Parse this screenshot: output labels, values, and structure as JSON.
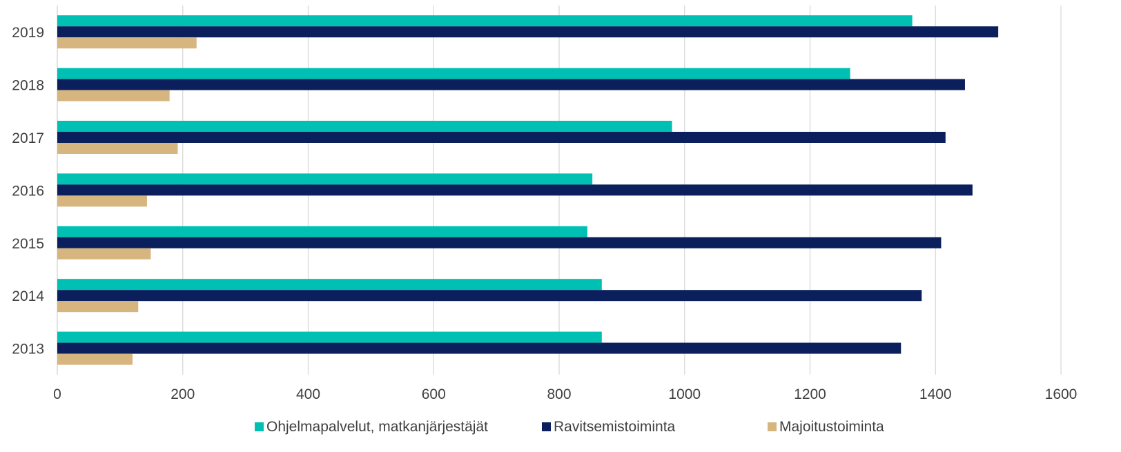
{
  "chart_data": {
    "type": "bar",
    "orientation": "horizontal",
    "categories": [
      "2019",
      "2018",
      "2017",
      "2016",
      "2015",
      "2014",
      "2013"
    ],
    "series": [
      {
        "name": "Ohjelmapalvelut, matkanjärjestäjät",
        "color": "#00bfb3",
        "values": [
          1363,
          1264,
          980,
          853,
          845,
          868,
          868
        ]
      },
      {
        "name": "Ravitsemistoiminta",
        "color": "#0a1f5c",
        "values": [
          1500,
          1447,
          1416,
          1459,
          1409,
          1378,
          1345
        ]
      },
      {
        "name": "Majoitustoiminta",
        "color": "#d6b57e",
        "values": [
          222,
          179,
          192,
          143,
          149,
          129,
          120
        ]
      }
    ],
    "xlim": [
      0,
      1600
    ],
    "xticks": [
      "0",
      "200",
      "400",
      "600",
      "800",
      "1000",
      "1200",
      "1400",
      "1600"
    ],
    "grid": "vertical",
    "legend": "bottom",
    "title": "",
    "xlabel": "",
    "ylabel": ""
  }
}
